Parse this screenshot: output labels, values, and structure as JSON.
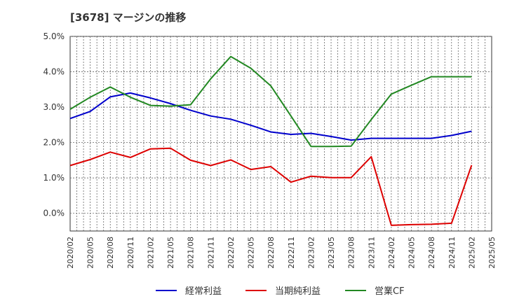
{
  "chart_data": {
    "type": "line",
    "title": "[3678]  マージンの推移",
    "xlabel": "",
    "ylabel": "",
    "x_ticks": [
      "2020/02",
      "2020/05",
      "2020/08",
      "2020/11",
      "2021/02",
      "2021/05",
      "2021/08",
      "2021/11",
      "2022/02",
      "2022/05",
      "2022/08",
      "2022/11",
      "2023/02",
      "2023/05",
      "2023/08",
      "2023/11",
      "2024/02",
      "2024/05",
      "2024/08",
      "2024/11",
      "2025/02",
      "2025/05"
    ],
    "x": [
      "2020/02",
      "2020/05",
      "2020/08",
      "2020/11",
      "2021/02",
      "2021/05",
      "2021/08",
      "2021/11",
      "2022/02",
      "2022/05",
      "2022/08",
      "2022/11",
      "2023/02",
      "2023/05",
      "2023/08",
      "2023/11",
      "2024/02",
      "2024/05",
      "2024/08",
      "2024/11",
      "2025/02"
    ],
    "y_ticks": [
      "5.0%",
      "4.0%",
      "3.0%",
      "2.0%",
      "1.0%",
      "0.0%"
    ],
    "ylim": [
      -0.5,
      5.0
    ],
    "grid": true,
    "legend_position": "bottom",
    "series": [
      {
        "name": "経常利益",
        "color": "#0000cc",
        "values": [
          2.68,
          2.88,
          3.29,
          3.4,
          3.26,
          3.1,
          2.91,
          2.75,
          2.66,
          2.49,
          2.3,
          2.23,
          2.26,
          2.17,
          2.07,
          2.12,
          2.12,
          2.12,
          2.12,
          2.2,
          2.32
        ]
      },
      {
        "name": "当期純利益",
        "color": "#dd0000",
        "values": [
          1.35,
          1.52,
          1.73,
          1.58,
          1.82,
          1.84,
          1.5,
          1.35,
          1.51,
          1.24,
          1.32,
          0.88,
          1.05,
          1.01,
          1.01,
          1.6,
          -0.34,
          -0.32,
          -0.31,
          -0.28,
          1.36
        ]
      },
      {
        "name": "営業CF",
        "color": "#228822",
        "values": [
          2.94,
          3.28,
          3.57,
          3.28,
          3.05,
          3.03,
          3.07,
          3.8,
          4.43,
          4.1,
          3.6,
          2.75,
          1.89,
          1.89,
          1.9,
          2.65,
          3.37,
          3.62,
          3.86,
          3.86,
          3.86
        ]
      }
    ]
  }
}
